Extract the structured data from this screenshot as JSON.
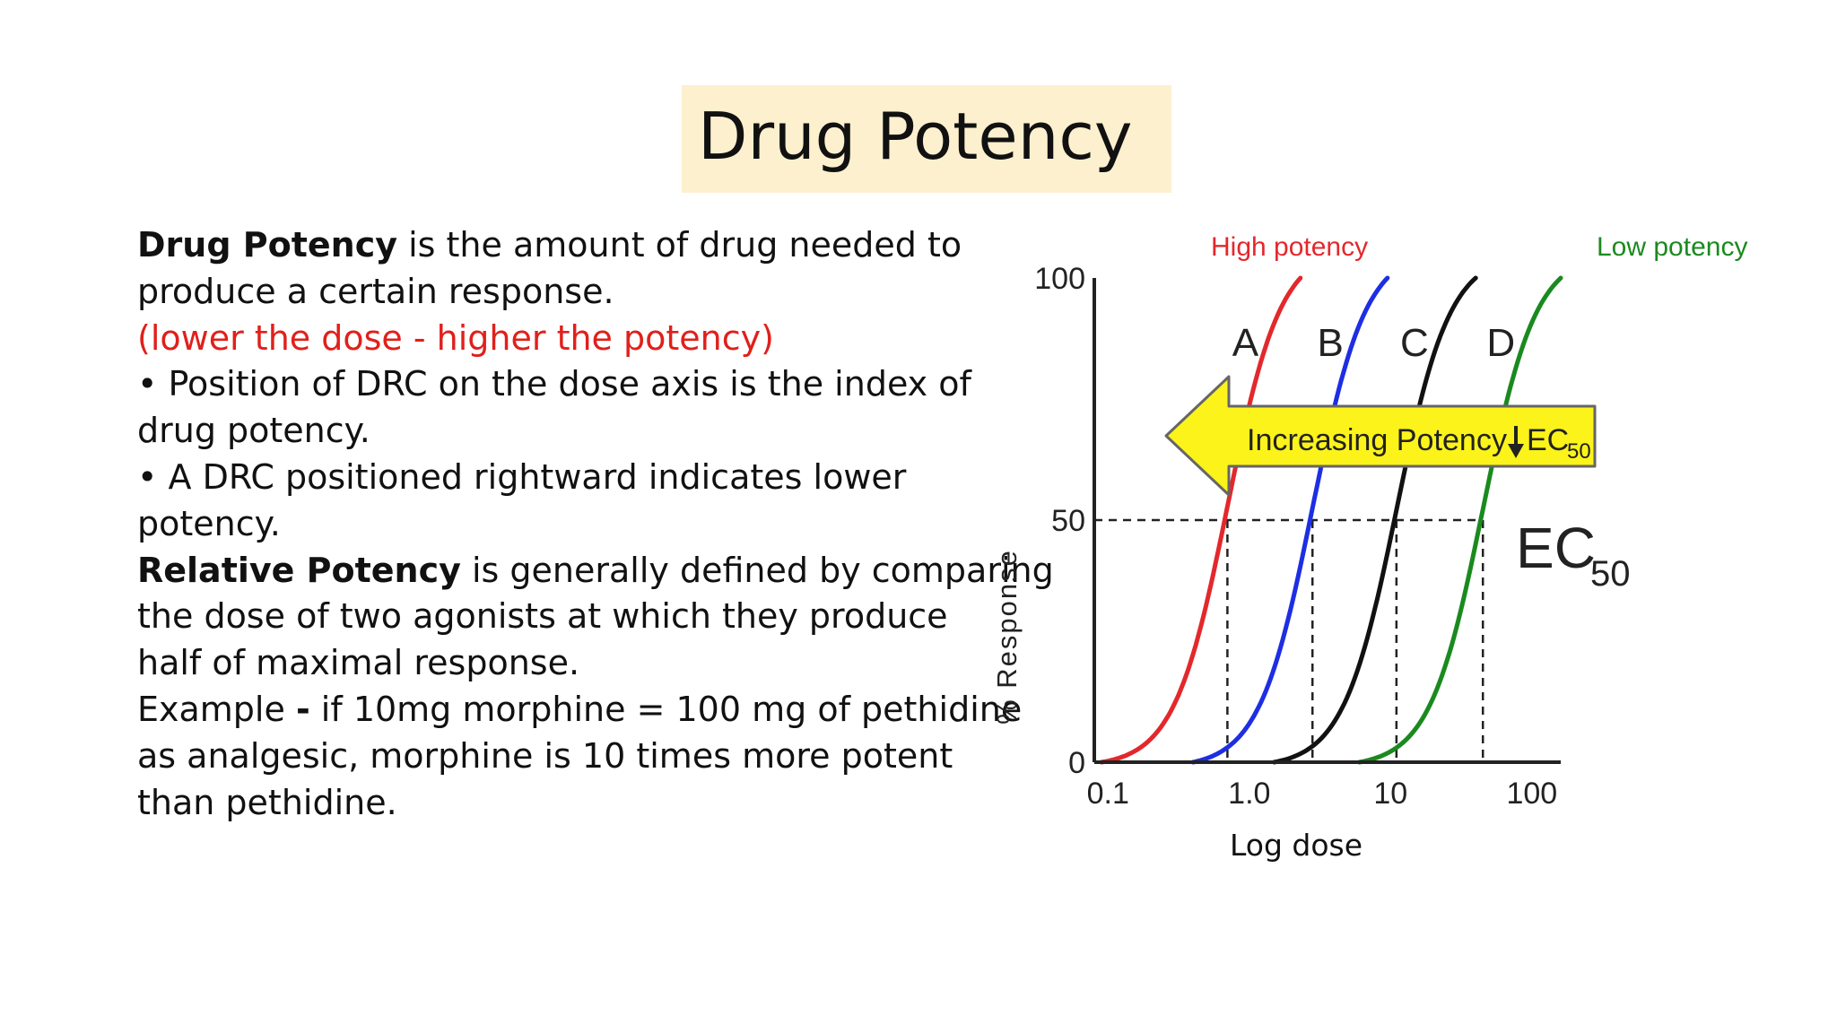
{
  "slide": {
    "title": "Drug Potency",
    "lines": [
      {
        "bold": "Drug Potency",
        "text": " is the amount of drug needed to"
      },
      {
        "text": "produce a certain response."
      },
      {
        "red": "(lower the dose - higher the potency)"
      },
      {
        "text": "• Position of DRC on the dose axis is the index of"
      },
      {
        "text": "drug potency."
      },
      {
        "text": "• A DRC positioned rightward indicates lower"
      },
      {
        "text": "potency."
      },
      {
        "bold": "Relative Potency",
        "text": " is generally defined by comparing"
      },
      {
        "text": "the dose of two agonists at which they produce"
      },
      {
        "text": "half of maximal response."
      },
      {
        "text": "Example ",
        "bold2": "-",
        "text2": " if 10mg morphine = 100 mg of pethidine"
      },
      {
        "text": "as analgesic, morphine is 10 times more potent"
      },
      {
        "text": "than pethidine."
      }
    ],
    "colors": {
      "title_bg": "#fdf0cf",
      "emphasis_red": "#e0201b"
    }
  },
  "chart_data": {
    "type": "line",
    "xlabel": "Log dose",
    "ylabel": "% Response",
    "x_scale": "log",
    "x_ticks": [
      "0.1",
      "1.0",
      "10",
      "100"
    ],
    "y_ticks": [
      "0",
      "50",
      "100"
    ],
    "xlim": [
      0.08,
      160
    ],
    "ylim": [
      0,
      100
    ],
    "series": [
      {
        "name": "A",
        "color": "#e3282c",
        "ec50": 0.7,
        "start": 0.09,
        "end": 2.3
      },
      {
        "name": "B",
        "color": "#1d2ee3",
        "ec50": 2.8,
        "start": 0.4,
        "end": 9.5
      },
      {
        "name": "C",
        "color": "#111111",
        "ec50": 11,
        "start": 1.5,
        "end": 40
      },
      {
        "name": "D",
        "color": "#1a8a1f",
        "ec50": 45,
        "start": 6,
        "end": 160
      }
    ],
    "annotations": {
      "high_potency": "High potency",
      "low_potency": "Low potency",
      "arrow_text": "Increasing Potency",
      "arrow_ec_main": "EC",
      "arrow_ec_sub": "50",
      "ec50_main": "EC",
      "ec50_sub": "50",
      "high_color": "#e3282c",
      "low_color": "#1a8a1f",
      "arrow_fill": "#fbf31a"
    }
  }
}
